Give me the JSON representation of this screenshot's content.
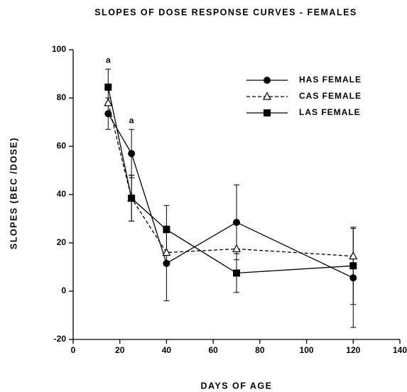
{
  "chart_data": {
    "type": "line",
    "title": "SLOPES OF DOSE RESPONSE CURVES - FEMALES",
    "x_label": "DAYS OF AGE",
    "y_label": "SLOPES (BEC /DOSE)",
    "x": [
      15,
      25,
      40,
      70,
      120
    ],
    "series": [
      {
        "name": "HAS FEMALE",
        "color": "#000000",
        "marker": "circle",
        "line": "solid",
        "values": [
          73.5,
          57,
          11.5,
          28.5,
          5.5
        ],
        "errors": [
          6.5,
          10,
          15.5,
          15.5,
          20.5
        ]
      },
      {
        "name": "CAS FEMALE",
        "color": "#000000",
        "marker": "triangle",
        "line": "dashed",
        "values": [
          78,
          38.5,
          16,
          17.5,
          14.5
        ],
        "errors": [
          null,
          9.5,
          null,
          null,
          null
        ]
      },
      {
        "name": "LAS FEMALE",
        "color": "#000000",
        "marker": "square",
        "line": "solid",
        "values": [
          84.5,
          38.5,
          25.5,
          7.5,
          10.5
        ],
        "errors": [
          7.5,
          9.5,
          10,
          8,
          16
        ]
      }
    ],
    "annotations": [
      "a",
      "a"
    ],
    "xlim": [
      0,
      140
    ],
    "xticks": [
      0,
      20,
      40,
      60,
      80,
      100,
      120,
      140
    ],
    "ylim": [
      -20,
      100
    ],
    "yticks": [
      -20,
      0,
      20,
      40,
      60,
      80,
      100
    ],
    "legend": "upper right",
    "grid": false
  }
}
